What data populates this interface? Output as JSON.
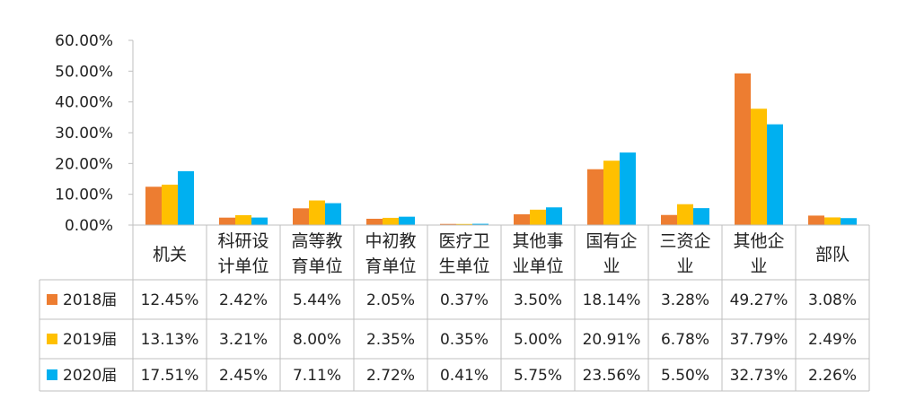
{
  "chart_data": {
    "type": "bar",
    "categories": [
      [
        "机关"
      ],
      [
        "科研设",
        "计单位"
      ],
      [
        "高等教",
        "育单位"
      ],
      [
        "中初教",
        "育单位"
      ],
      [
        "医疗卫",
        "生单位"
      ],
      [
        "其他事",
        "业单位"
      ],
      [
        "国有企",
        "业"
      ],
      [
        "三资企",
        "业"
      ],
      [
        "其他企",
        "业"
      ],
      [
        "部队"
      ]
    ],
    "series": [
      {
        "name": "2018届",
        "color": "#ED7D31",
        "values": [
          12.45,
          2.42,
          5.44,
          2.05,
          0.37,
          3.5,
          18.14,
          3.28,
          49.27,
          3.08
        ],
        "labels": [
          "12.45%",
          "2.42%",
          "5.44%",
          "2.05%",
          "0.37%",
          "3.50%",
          "18.14%",
          "3.28%",
          "49.27%",
          "3.08%"
        ]
      },
      {
        "name": "2019届",
        "color": "#FFC000",
        "values": [
          13.13,
          3.21,
          8.0,
          2.35,
          0.35,
          5.0,
          20.91,
          6.78,
          37.79,
          2.49
        ],
        "labels": [
          "13.13%",
          "3.21%",
          "8.00%",
          "2.35%",
          "0.35%",
          "5.00%",
          "20.91%",
          "6.78%",
          "37.79%",
          "2.49%"
        ]
      },
      {
        "name": "2020届",
        "color": "#00B0F0",
        "values": [
          17.51,
          2.45,
          7.11,
          2.72,
          0.41,
          5.75,
          23.56,
          5.5,
          32.73,
          2.26
        ],
        "labels": [
          "17.51%",
          "2.45%",
          "7.11%",
          "2.72%",
          "0.41%",
          "5.75%",
          "23.56%",
          "5.50%",
          "32.73%",
          "2.26%"
        ]
      }
    ],
    "yticks": [
      "0.00%",
      "10.00%",
      "20.00%",
      "30.00%",
      "40.00%",
      "50.00%",
      "60.00%"
    ],
    "ylim": [
      0,
      60
    ],
    "grid": false,
    "legend": "data-table"
  }
}
